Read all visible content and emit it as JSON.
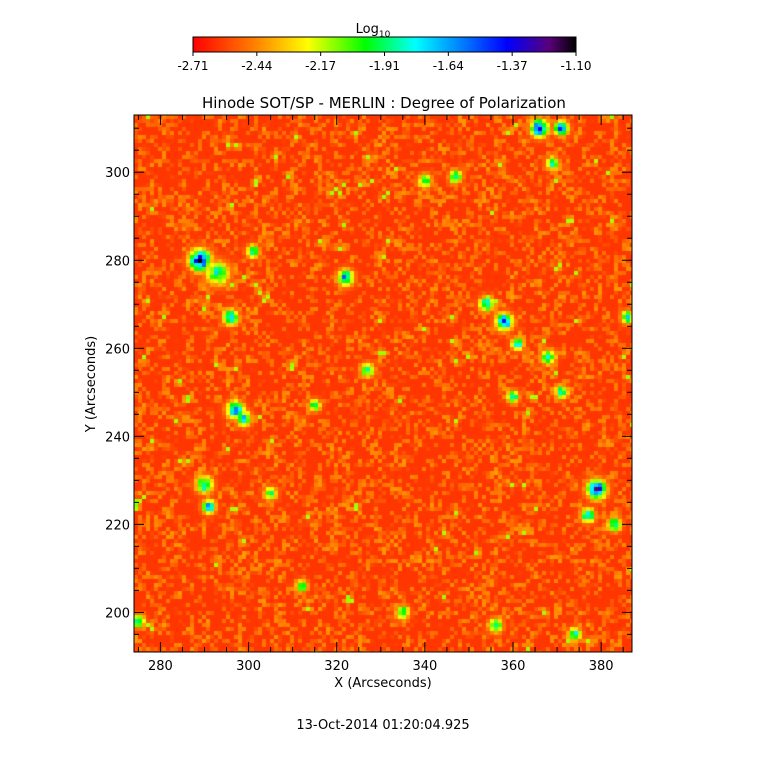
{
  "chart_data": {
    "type": "heatmap",
    "title": "Hinode SOT/SP - MERLIN : Degree of Polarization",
    "xlabel": "X (Arcseconds)",
    "ylabel": "Y (Arcseconds)",
    "timestamp": "13-Oct-2014 01:20:04.925",
    "xlim": [
      274,
      387
    ],
    "ylim": [
      191,
      313
    ],
    "x_ticks": [
      280,
      300,
      320,
      340,
      360,
      380
    ],
    "y_ticks": [
      200,
      220,
      240,
      260,
      280,
      300
    ],
    "colorbar": {
      "label": "Log",
      "label_subscript": "10",
      "ticks": [
        "-2.71",
        "-2.44",
        "-2.17",
        "-1.91",
        "-1.64",
        "-1.37",
        "-1.10"
      ],
      "range": [
        -2.71,
        -1.1
      ],
      "colors": [
        "#ff0000",
        "#ff7f00",
        "#ffff00",
        "#00ff00",
        "#00ffff",
        "#0000ff",
        "#000000"
      ]
    },
    "background_level": -2.6,
    "features": [
      {
        "x": 289,
        "y": 280,
        "peak": -1.25,
        "spread": 2.2
      },
      {
        "x": 293,
        "y": 277,
        "peak": -1.85,
        "spread": 2.5
      },
      {
        "x": 296,
        "y": 267,
        "peak": -1.6,
        "spread": 1.6
      },
      {
        "x": 297,
        "y": 246,
        "peak": -1.55,
        "spread": 1.8
      },
      {
        "x": 299,
        "y": 244,
        "peak": -1.75,
        "spread": 1.6
      },
      {
        "x": 290,
        "y": 229,
        "peak": -1.75,
        "spread": 1.8
      },
      {
        "x": 291,
        "y": 224,
        "peak": -1.55,
        "spread": 1.4
      },
      {
        "x": 301,
        "y": 282,
        "peak": -1.8,
        "spread": 1.4
      },
      {
        "x": 322,
        "y": 276,
        "peak": -1.6,
        "spread": 1.7
      },
      {
        "x": 327,
        "y": 255,
        "peak": -1.9,
        "spread": 1.5
      },
      {
        "x": 340,
        "y": 298,
        "peak": -1.9,
        "spread": 1.5
      },
      {
        "x": 347,
        "y": 299,
        "peak": -1.85,
        "spread": 1.4
      },
      {
        "x": 358,
        "y": 266,
        "peak": -1.5,
        "spread": 1.8
      },
      {
        "x": 354,
        "y": 270,
        "peak": -1.7,
        "spread": 1.5
      },
      {
        "x": 361,
        "y": 261,
        "peak": -1.7,
        "spread": 1.3
      },
      {
        "x": 360,
        "y": 249,
        "peak": -1.8,
        "spread": 1.3
      },
      {
        "x": 366,
        "y": 310,
        "peak": -1.3,
        "spread": 1.8
      },
      {
        "x": 371,
        "y": 310,
        "peak": -1.5,
        "spread": 1.5
      },
      {
        "x": 369,
        "y": 302,
        "peak": -1.85,
        "spread": 1.4
      },
      {
        "x": 368,
        "y": 258,
        "peak": -1.7,
        "spread": 1.5
      },
      {
        "x": 371,
        "y": 250,
        "peak": -1.8,
        "spread": 1.4
      },
      {
        "x": 379,
        "y": 228,
        "peak": -1.3,
        "spread": 2.0
      },
      {
        "x": 377,
        "y": 222,
        "peak": -1.7,
        "spread": 1.5
      },
      {
        "x": 383,
        "y": 220,
        "peak": -1.8,
        "spread": 1.5
      },
      {
        "x": 356,
        "y": 197,
        "peak": -1.8,
        "spread": 1.5
      },
      {
        "x": 335,
        "y": 200,
        "peak": -1.85,
        "spread": 1.4
      },
      {
        "x": 312,
        "y": 206,
        "peak": -1.85,
        "spread": 1.3
      },
      {
        "x": 305,
        "y": 227,
        "peak": -1.85,
        "spread": 1.4
      },
      {
        "x": 374,
        "y": 195,
        "peak": -1.75,
        "spread": 1.4
      },
      {
        "x": 386,
        "y": 267,
        "peak": -1.8,
        "spread": 1.4
      },
      {
        "x": 275,
        "y": 198,
        "peak": -1.8,
        "spread": 1.4
      },
      {
        "x": 315,
        "y": 247,
        "peak": -1.9,
        "spread": 1.3
      }
    ]
  }
}
